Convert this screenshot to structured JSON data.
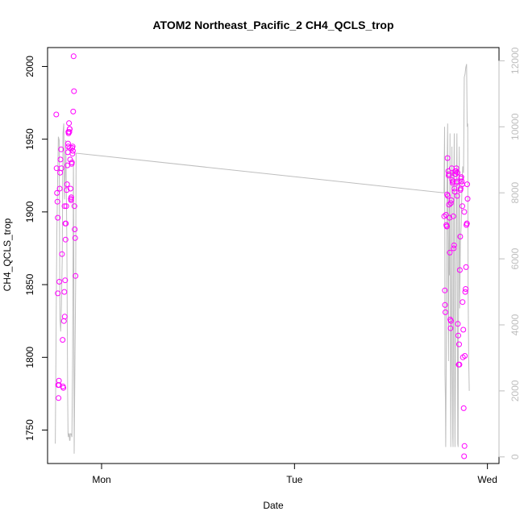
{
  "chart_data": {
    "type": "scatter",
    "title": "ATOM2 Northeast_Pacific_2 CH4_QCLS_trop",
    "xlabel": "Date",
    "ylabel": "CH4_QCLS_trop",
    "x_ticks": [
      {
        "label": "Mon",
        "x": 1.0
      },
      {
        "label": "Tue",
        "x": 2.0
      },
      {
        "label": "Wed",
        "x": 3.0
      }
    ],
    "xlim": [
      0.72,
      3.06
    ],
    "ylim": [
      1727,
      2013
    ],
    "y_ticks": [
      1750,
      1800,
      1850,
      1900,
      1950,
      2000
    ],
    "y2lim": [
      -200,
      12400
    ],
    "y2_ticks": [
      0,
      2000,
      4000,
      6000,
      8000,
      10000,
      12000
    ],
    "colors": {
      "points": "#ff00ff",
      "line": "#bebebe",
      "right_axis": "#bebebe",
      "axis": "#000000"
    },
    "series": [
      {
        "values": [
          [
            0.765,
            1967
          ],
          [
            0.767,
            1930
          ],
          [
            0.769,
            1913
          ],
          [
            0.771,
            1907
          ],
          [
            0.773,
            1844
          ],
          [
            0.775,
            1781
          ],
          [
            0.777,
            1772
          ],
          [
            0.779,
            1784
          ],
          [
            0.781,
            1852
          ],
          [
            0.783,
            1916
          ],
          [
            0.785,
            1927
          ],
          [
            0.787,
            1936
          ],
          [
            0.79,
            1943
          ],
          [
            0.792,
            1930
          ],
          [
            0.795,
            1871
          ],
          [
            0.798,
            1812
          ],
          [
            0.8,
            1780
          ],
          [
            0.802,
            1779
          ],
          [
            0.805,
            1825
          ],
          [
            0.807,
            1845
          ],
          [
            0.809,
            1828
          ],
          [
            0.811,
            1853
          ],
          [
            0.813,
            1881
          ],
          [
            0.815,
            1892
          ],
          [
            0.817,
            1904
          ],
          [
            0.819,
            1915
          ],
          [
            0.821,
            1919
          ],
          [
            0.823,
            1932
          ],
          [
            0.825,
            1941
          ],
          [
            0.827,
            1945
          ],
          [
            0.829,
            1954
          ],
          [
            0.831,
            1961
          ],
          [
            0.833,
            1955
          ],
          [
            0.835,
            1957
          ],
          [
            0.837,
            1936
          ],
          [
            0.839,
            1916
          ],
          [
            0.841,
            1909
          ],
          [
            0.843,
            1910
          ],
          [
            0.845,
            1933
          ],
          [
            0.847,
            1944
          ],
          [
            0.849,
            1940
          ],
          [
            0.851,
            1942
          ],
          [
            0.853,
            1969
          ],
          [
            0.855,
            2007
          ],
          [
            0.857,
            1983
          ],
          [
            0.859,
            1904
          ],
          [
            0.861,
            1888
          ],
          [
            0.863,
            1882
          ],
          [
            0.865,
            1856
          ],
          [
            0.773,
            1896
          ],
          [
            0.779,
            1781
          ],
          [
            0.808,
            1904
          ],
          [
            0.812,
            1892
          ],
          [
            0.826,
            1947
          ],
          [
            0.834,
            1957
          ],
          [
            0.842,
            1908
          ],
          [
            0.846,
            1934
          ],
          [
            0.85,
            1945
          ],
          [
            0.828,
            1955
          ],
          [
            0.836,
            1944
          ],
          [
            2.776,
            1897
          ],
          [
            2.779,
            1846
          ],
          [
            2.782,
            1831
          ],
          [
            2.785,
            1898
          ],
          [
            2.787,
            1891
          ],
          [
            2.789,
            1890
          ],
          [
            2.791,
            1912
          ],
          [
            2.793,
            1937
          ],
          [
            2.795,
            1911
          ],
          [
            2.797,
            1928
          ],
          [
            2.799,
            1925
          ],
          [
            2.801,
            1905
          ],
          [
            2.803,
            1896
          ],
          [
            2.805,
            1872
          ],
          [
            2.807,
            1826
          ],
          [
            2.809,
            1820
          ],
          [
            2.811,
            1825
          ],
          [
            2.813,
            1908
          ],
          [
            2.815,
            1930
          ],
          [
            2.817,
            1922
          ],
          [
            2.819,
            1920
          ],
          [
            2.821,
            1921
          ],
          [
            2.823,
            1897
          ],
          [
            2.825,
            1875
          ],
          [
            2.827,
            1877
          ],
          [
            2.829,
            1916
          ],
          [
            2.831,
            1926
          ],
          [
            2.833,
            1928
          ],
          [
            2.835,
            1926
          ],
          [
            2.837,
            1928
          ],
          [
            2.839,
            1930
          ],
          [
            2.841,
            1921
          ],
          [
            2.843,
            1911
          ],
          [
            2.845,
            1927
          ],
          [
            2.847,
            1823
          ],
          [
            2.849,
            1815
          ],
          [
            2.851,
            1795
          ],
          [
            2.853,
            1809
          ],
          [
            2.855,
            1795
          ],
          [
            2.857,
            1860
          ],
          [
            2.859,
            1883
          ],
          [
            2.861,
            1916
          ],
          [
            2.863,
            1923
          ],
          [
            2.865,
            1924
          ],
          [
            2.867,
            1921
          ],
          [
            2.869,
            1919
          ],
          [
            2.871,
            1838
          ],
          [
            2.873,
            1800
          ],
          [
            2.875,
            1819
          ],
          [
            2.877,
            1765
          ],
          [
            2.879,
            1732
          ],
          [
            2.881,
            1739
          ],
          [
            2.883,
            1801
          ],
          [
            2.885,
            1845
          ],
          [
            2.887,
            1847
          ],
          [
            2.889,
            1862
          ],
          [
            2.891,
            1891
          ],
          [
            2.893,
            1892
          ],
          [
            2.895,
            1919
          ],
          [
            2.897,
            1909
          ],
          [
            2.78,
            1836
          ],
          [
            2.79,
            1890
          ],
          [
            2.8,
            1926
          ],
          [
            2.81,
            1906
          ],
          [
            2.83,
            1914
          ],
          [
            2.84,
            1920
          ],
          [
            2.86,
            1915
          ],
          [
            2.87,
            1904
          ],
          [
            2.88,
            1900
          ],
          [
            2.894,
            1892
          ]
        ]
      },
      {
        "axis": "right",
        "values": [
          [
            0.76,
            400
          ],
          [
            0.764,
            3500
          ],
          [
            0.768,
            6800
          ],
          [
            0.772,
            8200
          ],
          [
            0.776,
            9700
          ],
          [
            0.78,
            9600
          ],
          [
            0.784,
            4200
          ],
          [
            0.788,
            3800
          ],
          [
            0.792,
            4600
          ],
          [
            0.796,
            6000
          ],
          [
            0.8,
            9800
          ],
          [
            0.804,
            10100
          ],
          [
            0.808,
            7800
          ],
          [
            0.812,
            8700
          ],
          [
            0.814,
            9600
          ],
          [
            0.816,
            8800
          ],
          [
            0.82,
            6600
          ],
          [
            0.824,
            1900
          ],
          [
            0.826,
            700
          ],
          [
            0.828,
            600
          ],
          [
            0.83,
            700
          ],
          [
            0.832,
            700
          ],
          [
            0.834,
            500
          ],
          [
            0.836,
            500
          ],
          [
            0.838,
            700
          ],
          [
            0.842,
            700
          ],
          [
            0.846,
            600
          ],
          [
            0.85,
            3000
          ],
          [
            0.854,
            9000
          ],
          [
            0.856,
            6200
          ],
          [
            0.858,
            100
          ],
          [
            0.862,
            3000
          ],
          [
            0.866,
            5400
          ],
          [
            0.868,
            9200
          ],
          [
            2.775,
            8000
          ],
          [
            2.778,
            10000
          ],
          [
            2.78,
            2500
          ],
          [
            2.782,
            1800
          ],
          [
            2.784,
            300
          ],
          [
            2.786,
            2300
          ],
          [
            2.788,
            6500
          ],
          [
            2.79,
            8000
          ],
          [
            2.792,
            9300
          ],
          [
            2.794,
            10100
          ],
          [
            2.796,
            4600
          ],
          [
            2.798,
            2900
          ],
          [
            2.8,
            6400
          ],
          [
            2.802,
            7800
          ],
          [
            2.804,
            5500
          ],
          [
            2.806,
            9800
          ],
          [
            2.808,
            3400
          ],
          [
            2.81,
            300
          ],
          [
            2.812,
            2000
          ],
          [
            2.814,
            5500
          ],
          [
            2.816,
            9400
          ],
          [
            2.818,
            3000
          ],
          [
            2.82,
            600
          ],
          [
            2.822,
            300
          ],
          [
            2.824,
            4000
          ],
          [
            2.826,
            8400
          ],
          [
            2.828,
            9800
          ],
          [
            2.83,
            1800
          ],
          [
            2.832,
            300
          ],
          [
            2.834,
            2200
          ],
          [
            2.836,
            4800
          ],
          [
            2.838,
            7000
          ],
          [
            2.84,
            8600
          ],
          [
            2.842,
            9800
          ],
          [
            2.844,
            5000
          ],
          [
            2.846,
            400
          ],
          [
            2.848,
            300
          ],
          [
            2.85,
            4000
          ],
          [
            2.852,
            8000
          ],
          [
            2.854,
            9400
          ],
          [
            2.856,
            4500
          ],
          [
            2.86,
            6500
          ],
          [
            2.864,
            7000
          ],
          [
            2.868,
            8300
          ],
          [
            2.872,
            8800
          ],
          [
            2.876,
            8600
          ],
          [
            2.88,
            11500
          ],
          [
            2.884,
            11600
          ],
          [
            2.888,
            11800
          ],
          [
            2.892,
            11900
          ],
          [
            2.895,
            10000
          ],
          [
            2.898,
            10100
          ],
          [
            2.9,
            5000
          ],
          [
            2.903,
            3000
          ],
          [
            2.906,
            2000
          ]
        ]
      }
    ]
  }
}
